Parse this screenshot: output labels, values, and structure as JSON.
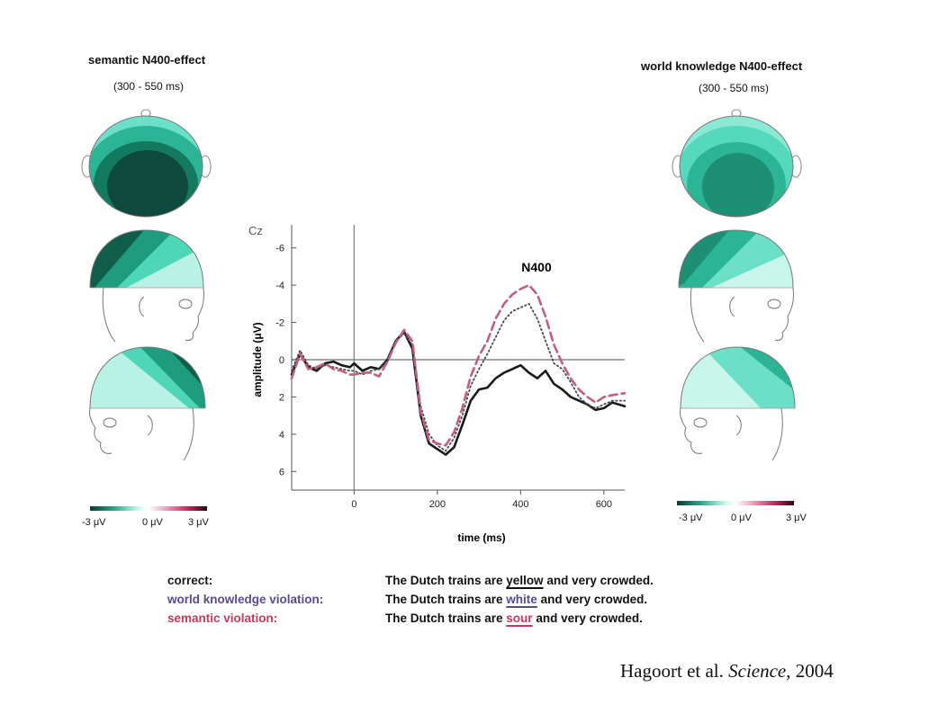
{
  "left_panel": {
    "title": "semantic N400-effect",
    "window": "(300 - 550 ms)",
    "colorbar": {
      "min": "-3 μV",
      "mid": "0 μV",
      "max": "3 μV"
    }
  },
  "right_panel": {
    "title": "world knowledge N400-effect",
    "window": "(300 - 550 ms)",
    "colorbar": {
      "min": "-3 μV",
      "mid": "0 μV",
      "max": "3 μV"
    }
  },
  "colors": {
    "correct": "#1a1a1a",
    "world_knowledge": "#4a4a4a",
    "semantic": "#c0607a",
    "teal_light": "#b3f2e3",
    "teal_mid": "#4fd6b6",
    "teal_dark": "#0f5e4a",
    "teal_darkest": "#0b3b30",
    "wk_legend": "#5a4b8c",
    "sem_legend": "#c23b5e"
  },
  "chart_data": {
    "type": "line",
    "channel_label": "Cz",
    "peak_label": "N400",
    "xlabel": "time (ms)",
    "ylabel": "amplitude (μV)",
    "xlim": [
      -150,
      650
    ],
    "ylim": [
      -7,
      7
    ],
    "y_inverted": true,
    "x_ticks": [
      0,
      200,
      400,
      600
    ],
    "y_ticks": [
      -6,
      -4,
      -2,
      0,
      2,
      4,
      6
    ],
    "series": [
      {
        "name": "correct",
        "style": "solid",
        "x": [
          -150,
          -130,
          -110,
          -90,
          -70,
          -50,
          -30,
          -10,
          0,
          20,
          40,
          60,
          80,
          100,
          120,
          140,
          160,
          180,
          200,
          220,
          240,
          260,
          280,
          300,
          320,
          340,
          360,
          380,
          400,
          420,
          440,
          460,
          480,
          500,
          520,
          540,
          560,
          580,
          600,
          620,
          650
        ],
        "y": [
          0.8,
          -0.3,
          0.4,
          0.6,
          0.2,
          0.1,
          0.3,
          0.4,
          0.2,
          0.6,
          0.4,
          0.5,
          0.0,
          -1.0,
          -1.5,
          -0.6,
          3.0,
          4.5,
          4.8,
          5.1,
          4.7,
          3.5,
          2.2,
          1.6,
          1.5,
          1.0,
          0.7,
          0.5,
          0.3,
          0.7,
          1.0,
          0.6,
          1.3,
          1.6,
          2.0,
          2.2,
          2.4,
          2.7,
          2.6,
          2.3,
          2.5
        ]
      },
      {
        "name": "world knowledge violation",
        "style": "dotted",
        "x": [
          -150,
          -130,
          -110,
          -90,
          -70,
          -50,
          -30,
          -10,
          0,
          20,
          40,
          60,
          80,
          100,
          120,
          140,
          160,
          180,
          200,
          220,
          240,
          260,
          280,
          300,
          320,
          340,
          360,
          380,
          400,
          420,
          440,
          460,
          480,
          500,
          520,
          540,
          560,
          580,
          600,
          620,
          650
        ],
        "y": [
          0.6,
          -0.5,
          0.3,
          0.5,
          0.3,
          0.4,
          0.5,
          0.6,
          0.6,
          0.8,
          0.6,
          0.5,
          0.1,
          -1.0,
          -1.4,
          -0.8,
          2.5,
          4.0,
          4.6,
          4.9,
          4.2,
          3.0,
          1.4,
          0.5,
          -0.3,
          -1.2,
          -2.1,
          -2.6,
          -2.8,
          -3.0,
          -2.2,
          -1.0,
          0.2,
          0.5,
          1.2,
          2.0,
          2.4,
          2.6,
          2.4,
          2.2,
          2.2
        ]
      },
      {
        "name": "semantic violation",
        "style": "dashed",
        "x": [
          -150,
          -130,
          -110,
          -90,
          -70,
          -50,
          -30,
          -10,
          0,
          20,
          40,
          60,
          80,
          100,
          120,
          140,
          160,
          180,
          200,
          220,
          240,
          260,
          280,
          300,
          320,
          340,
          360,
          380,
          400,
          420,
          440,
          460,
          480,
          500,
          520,
          540,
          560,
          580,
          600,
          620,
          650
        ],
        "y": [
          1.0,
          -0.3,
          0.5,
          0.4,
          0.2,
          0.5,
          0.6,
          0.8,
          0.8,
          0.7,
          0.7,
          0.9,
          0.1,
          -0.9,
          -1.6,
          -1.0,
          2.8,
          4.3,
          4.5,
          4.6,
          3.9,
          2.6,
          0.9,
          -0.2,
          -1.0,
          -2.2,
          -3.0,
          -3.5,
          -3.8,
          -4.0,
          -3.5,
          -2.3,
          -0.8,
          0.2,
          1.0,
          1.6,
          2.0,
          2.3,
          2.0,
          1.9,
          1.8
        ]
      }
    ]
  },
  "legend": {
    "rows": [
      {
        "condition": "correct:",
        "before": "The Dutch trains are ",
        "word": "yellow",
        "after": " and very crowded."
      },
      {
        "condition": "world knowledge violation:",
        "before": "The Dutch trains are ",
        "word": "white",
        "after": " and very crowded."
      },
      {
        "condition": "semantic violation:",
        "before": "The Dutch trains are ",
        "word": "sour",
        "after": " and very crowded."
      }
    ]
  },
  "citation": {
    "authors": "Hagoort et al. ",
    "journal": "Science",
    "year": ", 2004"
  }
}
